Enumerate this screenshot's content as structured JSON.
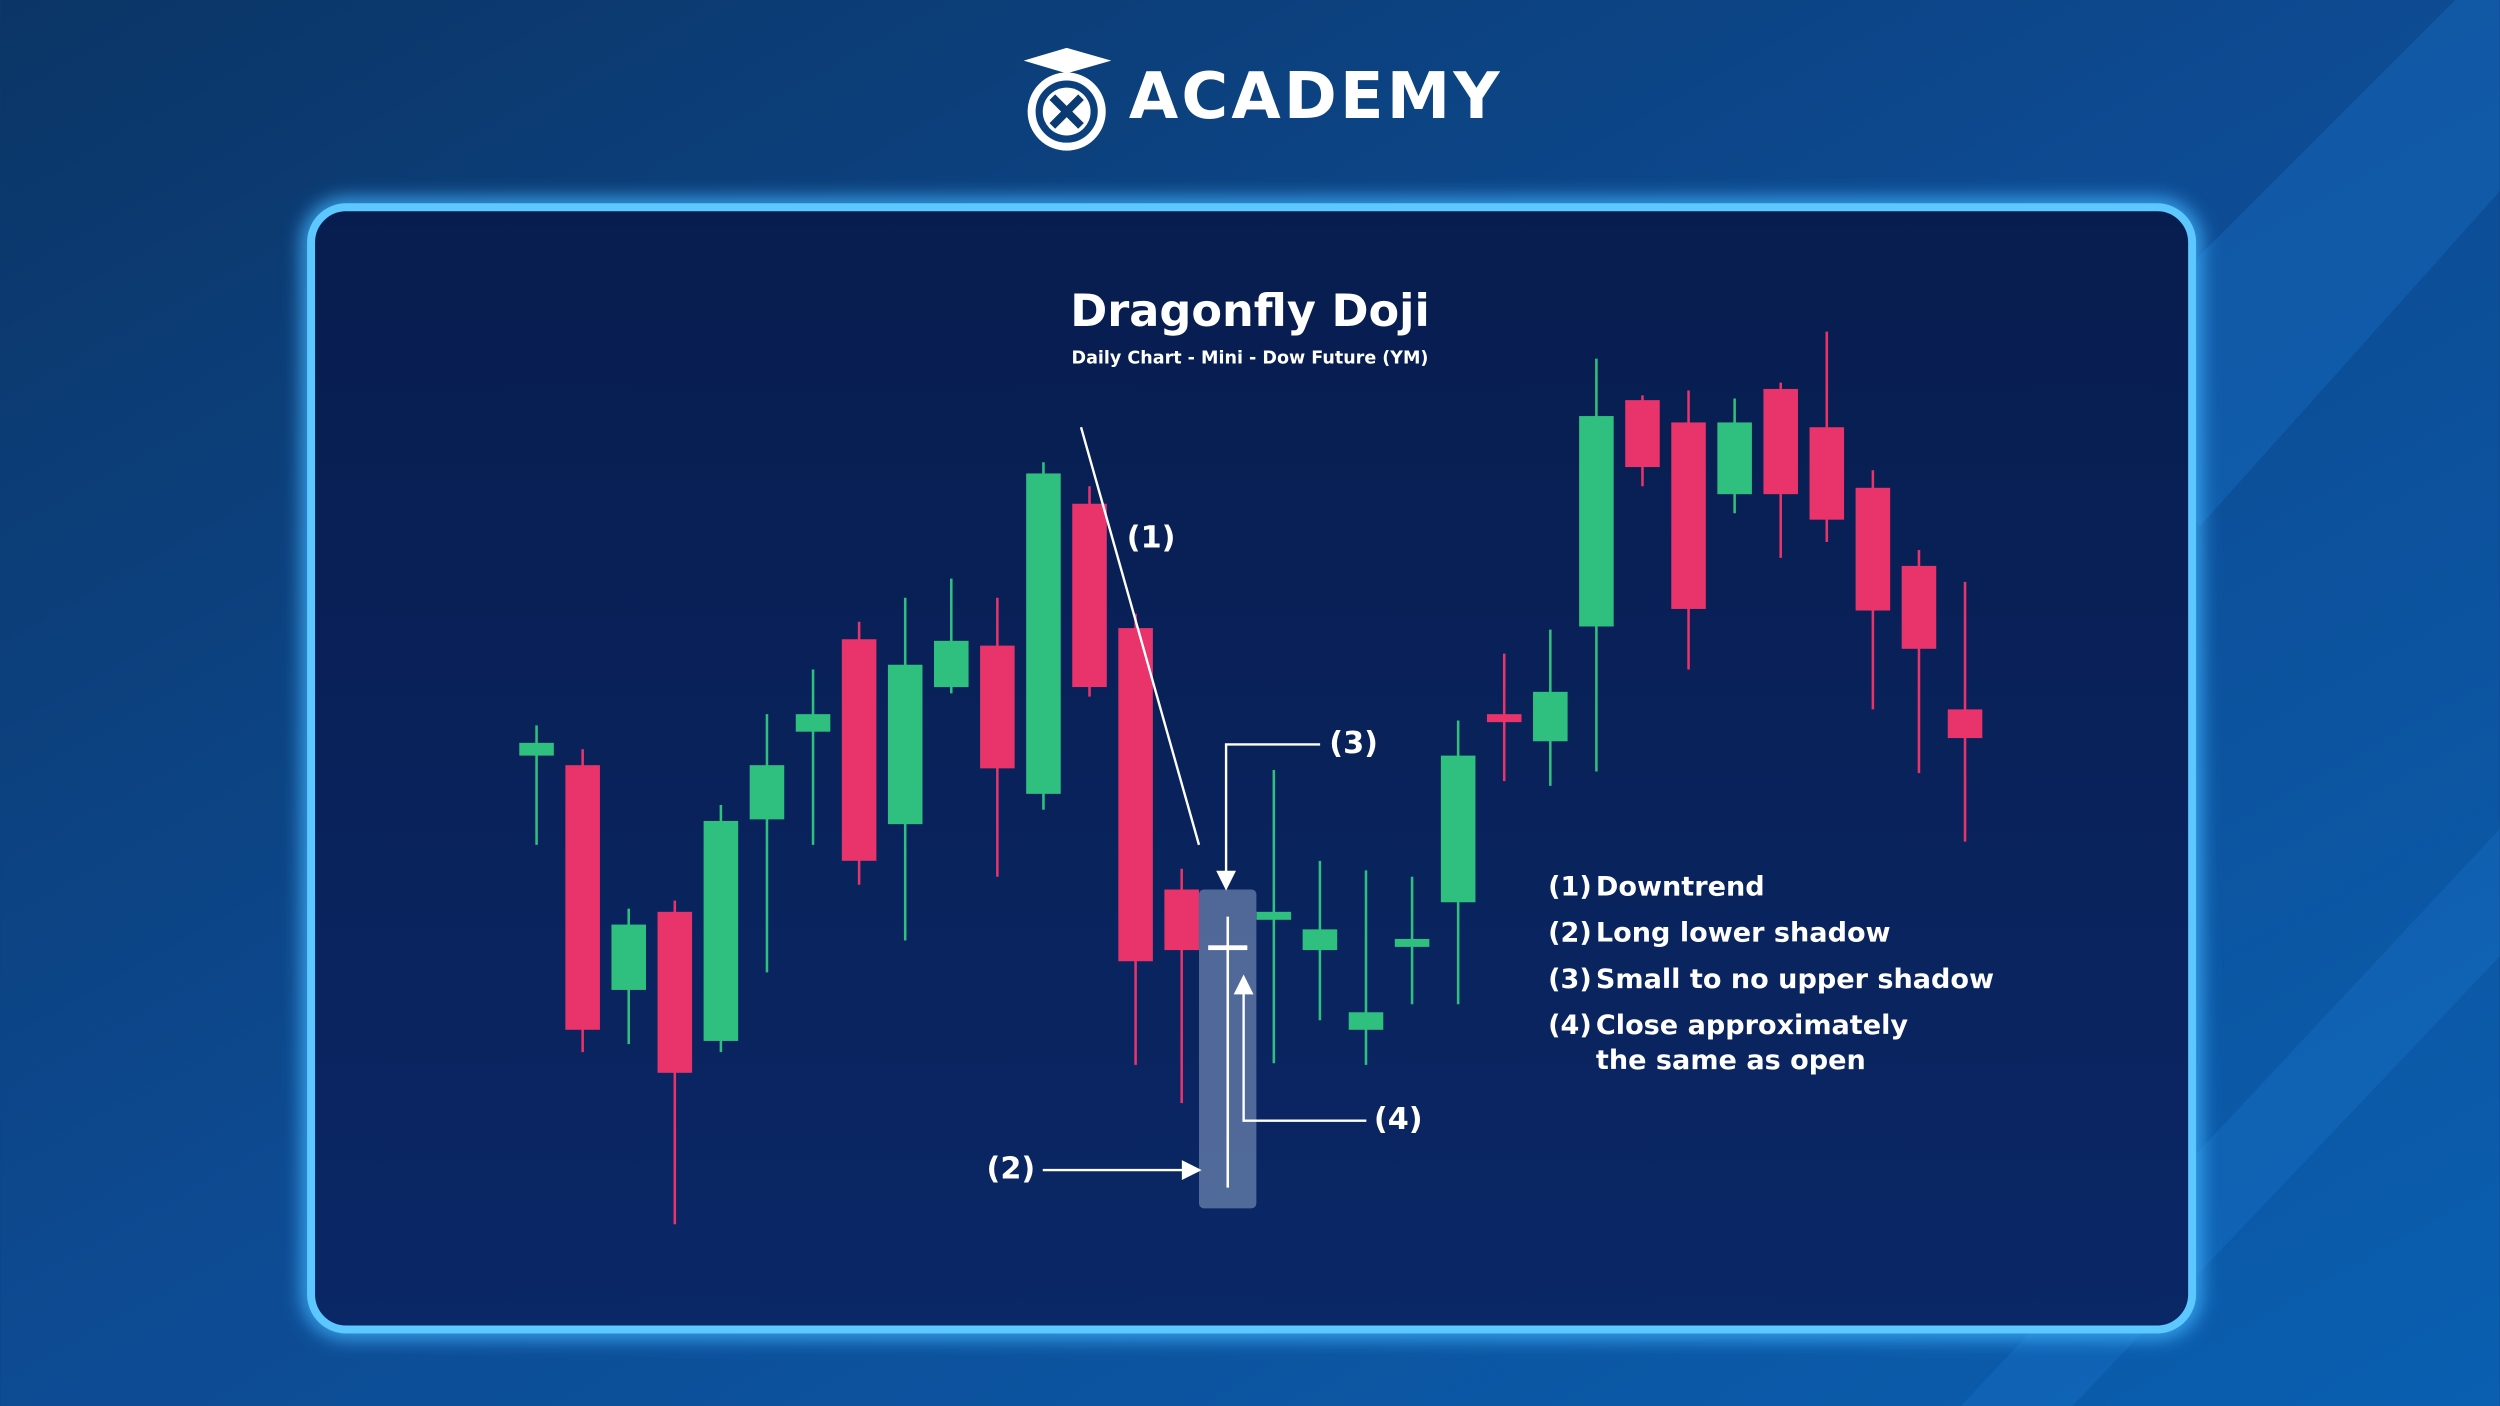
{
  "brand": "ACADEMY",
  "chart_data": {
    "type": "candlestick",
    "title": "Dragonfly Doji",
    "subtitle": "Daily Chart - Mini - Dow Future (YM)",
    "categories": [
      null,
      null,
      null,
      null,
      null,
      null,
      null,
      null,
      null,
      null,
      null,
      null,
      null,
      null,
      null,
      null,
      null,
      null,
      null,
      null,
      null,
      null,
      null,
      null,
      null,
      null,
      null,
      null,
      null,
      null,
      null,
      null
    ],
    "open": [
      326,
      320,
      179,
      228,
      147,
      286,
      341,
      399,
      283,
      369,
      395,
      302,
      484,
      406,
      242,
      207,
      223,
      204,
      154,
      206,
      234,
      352,
      335,
      407,
      549,
      535,
      490,
      556,
      532,
      494,
      445,
      355
    ],
    "high": [
      345,
      330,
      230,
      235,
      295,
      352,
      380,
      410,
      425,
      437,
      425,
      510,
      495,
      415,
      255,
      225,
      317,
      260,
      254,
      250,
      348,
      390,
      405,
      575,
      552,
      555,
      550,
      560,
      592,
      505,
      455,
      435
    ],
    "low": [
      270,
      140,
      145,
      32,
      140,
      190,
      270,
      245,
      210,
      365,
      250,
      292,
      363,
      132,
      108,
      55,
      133,
      160,
      132,
      170,
      170,
      310,
      307,
      316,
      495,
      380,
      478,
      450,
      460,
      355,
      315,
      272
    ],
    "close": [
      334,
      154,
      220,
      127,
      285,
      320,
      352,
      260,
      383,
      398,
      318,
      503,
      369,
      197,
      204,
      206,
      228,
      217,
      165,
      211,
      326,
      347,
      366,
      539,
      507,
      418,
      535,
      490,
      474,
      417,
      393,
      337
    ],
    "up_color": "#2fbf7f",
    "down_color": "#e8336b",
    "highlight": 15,
    "ylim": [
      0,
      600
    ],
    "annotations": [
      "(1)",
      "(2)",
      "(3)",
      "(4)"
    ],
    "notes": [
      {
        "marker": "(1)",
        "lines": [
          "Downtrend"
        ]
      },
      {
        "marker": "(2)",
        "lines": [
          "Long lower shadow"
        ]
      },
      {
        "marker": "(3)",
        "lines": [
          "Small to no upper shadow"
        ]
      },
      {
        "marker": "(4)",
        "lines": [
          "Close approximately",
          "the same as open"
        ]
      }
    ]
  }
}
